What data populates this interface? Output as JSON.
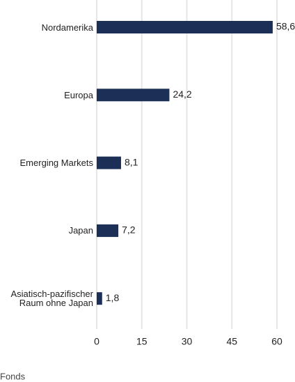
{
  "chart_data": {
    "type": "hbar",
    "categories": [
      "Nordamerika",
      "Europa",
      "Emerging Markets",
      "Japan",
      "Asiatisch-pazifischer Raum ohne Japan"
    ],
    "series": [
      {
        "name": "Fonds",
        "color": "#1b2f57",
        "values": [
          58.6,
          24.2,
          8.1,
          7.2,
          1.8
        ],
        "value_labels": [
          "58,6",
          "24,2",
          "8,1",
          "7,2",
          "1,8"
        ]
      }
    ],
    "xlim": [
      0,
      60
    ],
    "xticks": [
      0,
      15,
      30,
      45,
      60
    ],
    "grid": true
  }
}
